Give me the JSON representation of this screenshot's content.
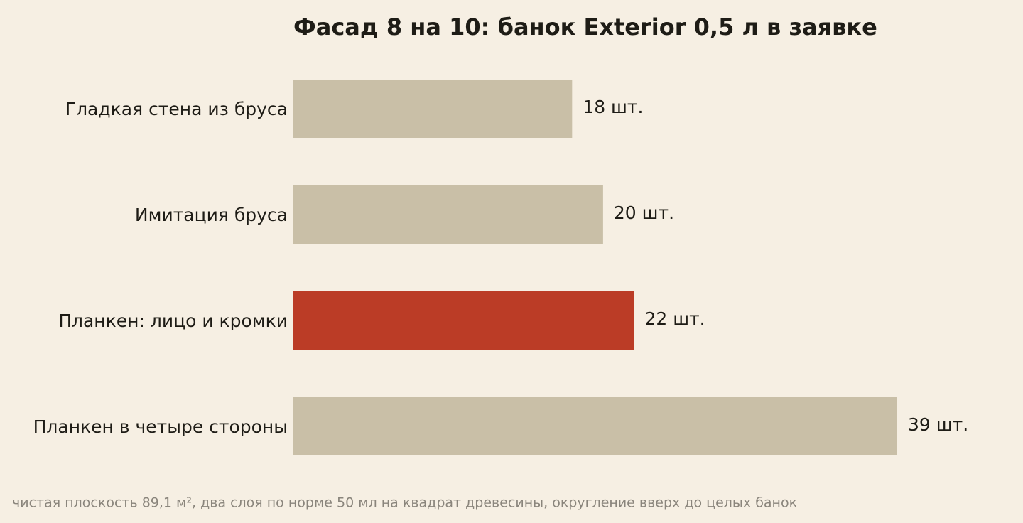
{
  "chart_data": {
    "type": "bar",
    "orientation": "horizontal",
    "title": "Фасад 8 на 10: банок Exterior 0,5 л в заявке",
    "categories": [
      "Гладкая стена из бруса",
      "Имитация бруса",
      "Планкен: лицо и кромки",
      "Планкен в четыре стороны"
    ],
    "values": [
      18,
      20,
      22,
      39
    ],
    "value_labels": [
      "18 шт.",
      "20 шт.",
      "22 шт.",
      "39 шт."
    ],
    "colors": [
      "#c9bfa7",
      "#c9bfa7",
      "#bb3c26",
      "#c9bfa7"
    ],
    "note": "чистая плоскость 89,1 м², два слоя по норме 50 мл на квадрат древесины, округление вверх до целых банок"
  }
}
